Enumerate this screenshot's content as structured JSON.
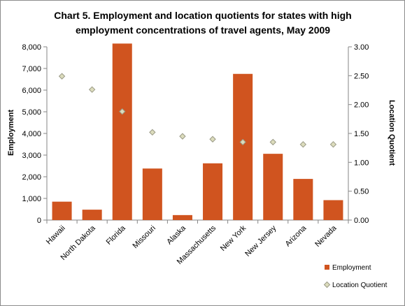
{
  "chart_data": {
    "type": "bar",
    "title_lines": [
      "Chart 5. Employment and location quotients for states with high",
      "employment concentrations of travel agents, May 2009"
    ],
    "categories": [
      "Hawaii",
      "North Dakota",
      "Florida",
      "Missouri",
      "Alaska",
      "Massachusetts",
      "New York",
      "New Jersey",
      "Arizona",
      "Nevada"
    ],
    "series": [
      {
        "name": "Employment",
        "type": "bar",
        "axis": "left",
        "color": "#d0541f",
        "values": [
          850,
          480,
          8150,
          2380,
          230,
          2620,
          6750,
          3060,
          1900,
          920
        ]
      },
      {
        "name": "Location Quotient",
        "type": "scatter",
        "axis": "right",
        "marker": "diamond",
        "color": "#dcdcbc",
        "stroke": "#9a9a86",
        "values": [
          2.49,
          2.26,
          1.88,
          1.52,
          1.45,
          1.4,
          1.35,
          1.35,
          1.31,
          1.31
        ]
      }
    ],
    "ylabel": "Employment",
    "y2label": "Location Quotient",
    "ylim": [
      0,
      8000
    ],
    "y2lim": [
      0,
      3
    ],
    "yticks": [
      "0",
      "1,000",
      "2,000",
      "3,000",
      "4,000",
      "5,000",
      "6,000",
      "7,000",
      "8,000"
    ],
    "y2ticks": [
      "0.00",
      "0.50",
      "1.00",
      "1.50",
      "2.00",
      "2.50",
      "3.00"
    ],
    "grid": false,
    "legend": "bottom-right"
  }
}
